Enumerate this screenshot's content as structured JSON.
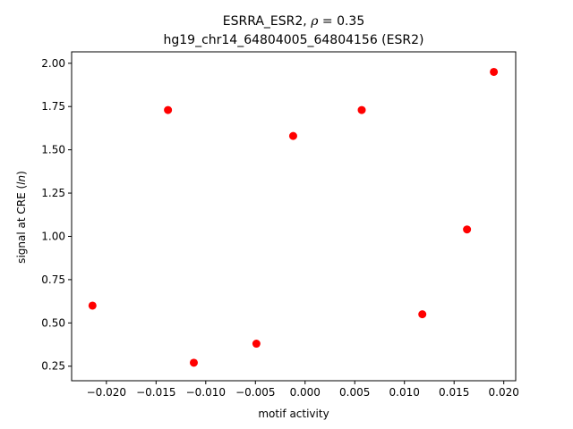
{
  "chart_data": {
    "type": "scatter",
    "title_line1_main": "ESRRA_ESR2, ",
    "title_line1_rho": "ρ",
    "title_line1_value": " = 0.35",
    "title_line2": "hg19_chr14_64804005_64804156 (ESR2)",
    "xlabel": "motif activity",
    "ylabel_prefix": "signal at CRE (",
    "ylabel_italic": "ln",
    "ylabel_suffix": ")",
    "xlim": [
      -0.0235,
      0.0212
    ],
    "ylim": [
      0.166,
      2.066
    ],
    "x_ticks": [
      -0.02,
      -0.015,
      -0.01,
      -0.005,
      0.0,
      0.005,
      0.01,
      0.015,
      0.02
    ],
    "x_tick_labels": [
      "−0.020",
      "−0.015",
      "−0.010",
      "−0.005",
      "0.000",
      "0.005",
      "0.010",
      "0.015",
      "0.020"
    ],
    "y_ticks": [
      0.25,
      0.5,
      0.75,
      1.0,
      1.25,
      1.5,
      1.75,
      2.0
    ],
    "y_tick_labels": [
      "0.25",
      "0.50",
      "0.75",
      "1.00",
      "1.25",
      "1.50",
      "1.75",
      "2.00"
    ],
    "marker_color": "#ff0000",
    "points": [
      {
        "x": -0.0214,
        "y": 0.6
      },
      {
        "x": -0.0138,
        "y": 1.73
      },
      {
        "x": -0.0112,
        "y": 0.27
      },
      {
        "x": -0.0049,
        "y": 0.38
      },
      {
        "x": -0.0012,
        "y": 1.58
      },
      {
        "x": 0.0057,
        "y": 1.73
      },
      {
        "x": 0.0118,
        "y": 0.55
      },
      {
        "x": 0.0163,
        "y": 1.04
      },
      {
        "x": 0.019,
        "y": 1.95
      }
    ]
  }
}
